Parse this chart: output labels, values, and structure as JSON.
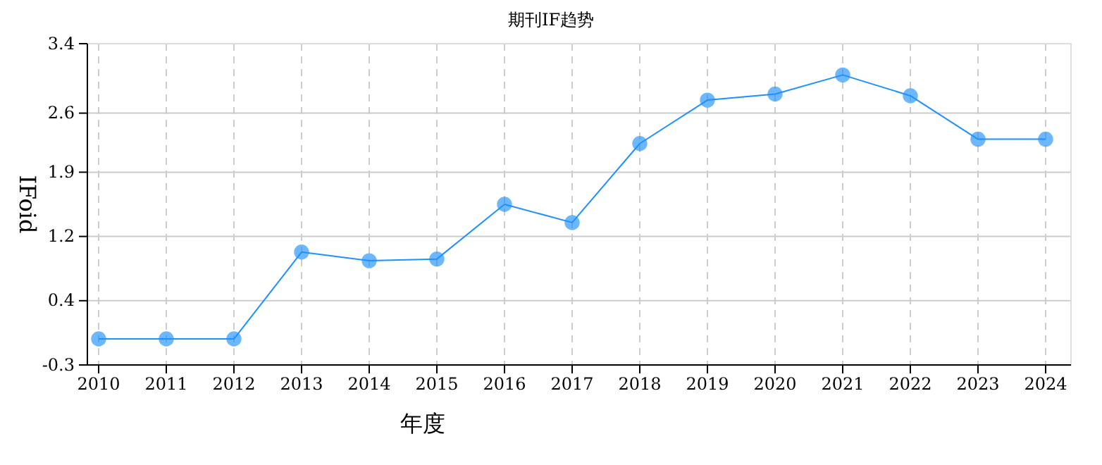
{
  "chart_data": {
    "type": "line",
    "title": "期刊IF趋势",
    "xlabel": "年度",
    "ylabel": "IFoid",
    "categories": [
      "2010",
      "2011",
      "2012",
      "2013",
      "2014",
      "2015",
      "2016",
      "2017",
      "2018",
      "2019",
      "2020",
      "2021",
      "2022",
      "2023",
      "2024"
    ],
    "series": [
      {
        "color": "#1e90ff",
        "values": [
          0,
          0,
          0,
          1.0,
          0.9,
          0.92,
          1.55,
          1.34,
          2.25,
          2.75,
          2.82,
          3.04,
          2.8,
          2.3,
          2.3
        ]
      }
    ],
    "ylim": [
      -0.3,
      3.4
    ],
    "yticks": [
      {
        "value": -0.3,
        "label": "-0.3"
      },
      {
        "value": 0.44,
        "label": "0.4"
      },
      {
        "value": 1.18,
        "label": "1.2"
      },
      {
        "value": 1.92,
        "label": "1.9"
      },
      {
        "value": 2.6,
        "label": "2.6"
      },
      {
        "value": 3.4,
        "label": "3.4"
      }
    ],
    "grid": true,
    "marker": "circle",
    "line_style": "solid"
  }
}
